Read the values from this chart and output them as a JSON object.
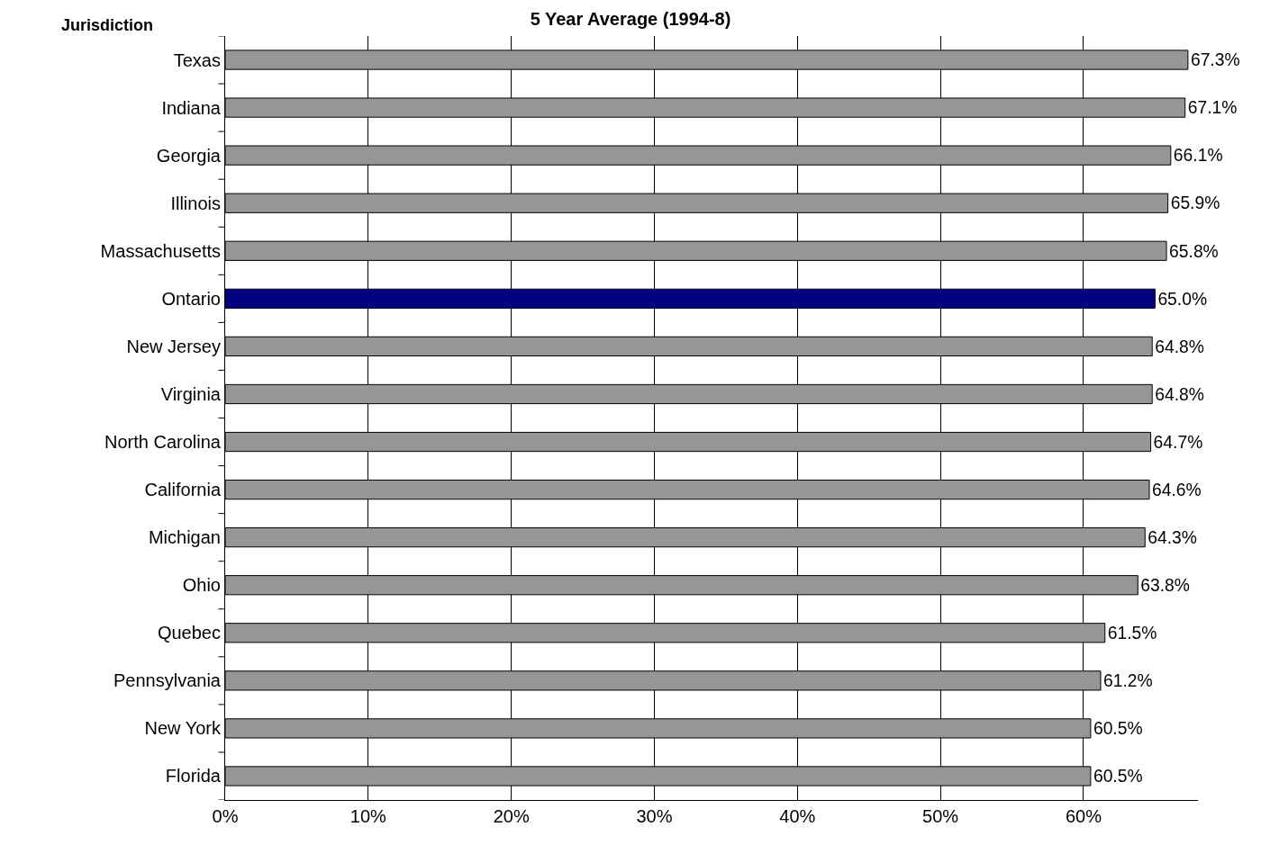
{
  "chart_data": {
    "type": "bar",
    "orientation": "horizontal",
    "title": "5 Year Average (1994-8)",
    "ylabel": "Jurisdiction",
    "categories": [
      "Texas",
      "Indiana",
      "Georgia",
      "Illinois",
      "Massachusetts",
      "Ontario",
      "New Jersey",
      "Virginia",
      "North Carolina",
      "California",
      "Michigan",
      "Ohio",
      "Quebec",
      "Pennsylvania",
      "New York",
      "Florida"
    ],
    "values": [
      67.3,
      67.1,
      66.1,
      65.9,
      65.8,
      65.0,
      64.8,
      64.8,
      64.7,
      64.6,
      64.3,
      63.8,
      61.5,
      61.2,
      60.5,
      60.5
    ],
    "value_labels": [
      "67.3%",
      "67.1%",
      "66.1%",
      "65.9%",
      "65.8%",
      "65.0%",
      "64.8%",
      "64.8%",
      "64.7%",
      "64.6%",
      "64.3%",
      "63.8%",
      "61.5%",
      "61.2%",
      "60.5%",
      "60.5%"
    ],
    "colors": [
      "#969696",
      "#969696",
      "#969696",
      "#969696",
      "#969696",
      "#000080",
      "#969696",
      "#969696",
      "#969696",
      "#969696",
      "#969696",
      "#969696",
      "#969696",
      "#969696",
      "#969696",
      "#969696"
    ],
    "xlim": [
      0,
      68
    ],
    "xticks": [
      {
        "value": 0,
        "label": "0%"
      },
      {
        "value": 10,
        "label": "10%"
      },
      {
        "value": 20,
        "label": "20%"
      },
      {
        "value": 30,
        "label": "30%"
      },
      {
        "value": 40,
        "label": "40%"
      },
      {
        "value": 50,
        "label": "50%"
      },
      {
        "value": 60,
        "label": "60%"
      }
    ],
    "grid": "x",
    "legend": false
  }
}
